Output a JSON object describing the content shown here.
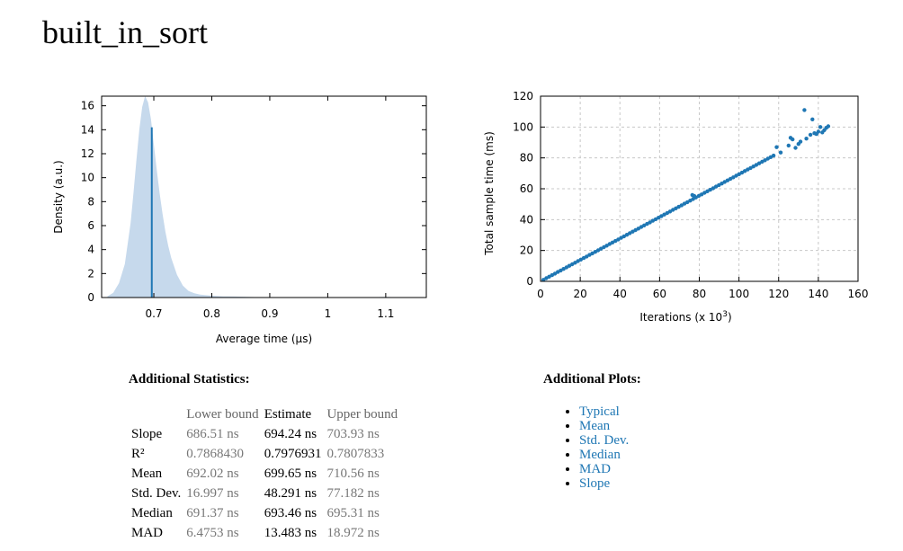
{
  "page": {
    "title": "built_in_sort"
  },
  "chart_data": [
    {
      "type": "area",
      "xlabel": "Average time (µs)",
      "ylabel": "Density (a.u.)",
      "xlim": [
        0.61,
        1.17
      ],
      "ylim": [
        0,
        16.8
      ],
      "xticks": [
        0.7,
        0.8,
        0.9,
        1,
        1.1
      ],
      "yticks": [
        0,
        2,
        4,
        6,
        8,
        10,
        12,
        14,
        16
      ],
      "grid": false,
      "x": [
        0.62,
        0.63,
        0.64,
        0.65,
        0.66,
        0.665,
        0.67,
        0.675,
        0.68,
        0.685,
        0.69,
        0.695,
        0.7,
        0.705,
        0.71,
        0.715,
        0.72,
        0.725,
        0.73,
        0.74,
        0.75,
        0.76,
        0.77,
        0.78,
        0.8,
        0.82,
        0.84,
        0.86,
        0.88,
        0.9,
        0.95,
        1.0,
        1.05,
        1.08,
        1.1,
        1.12,
        1.15
      ],
      "y": [
        0.1,
        0.4,
        1.2,
        2.8,
        6.2,
        8.8,
        11.5,
        14.0,
        15.9,
        16.8,
        16.3,
        14.9,
        12.8,
        10.7,
        8.7,
        7.0,
        5.5,
        4.3,
        3.3,
        1.9,
        1.0,
        0.55,
        0.35,
        0.25,
        0.15,
        0.1,
        0.08,
        0.05,
        0.03,
        0.02,
        0.01,
        0.01,
        0.01,
        0.03,
        0.06,
        0.02,
        0.0
      ],
      "estimate_line": {
        "x": 0.6965,
        "y": 14.2
      },
      "colors": {
        "fill": "#c6d9ec",
        "line": "#1f77b4"
      }
    },
    {
      "type": "scatter",
      "xlabel": "Iterations (x 10",
      "xlabel_sup": "3",
      "xlabel_end": ")",
      "ylabel": "Total sample time (ms)",
      "xlim": [
        0,
        160
      ],
      "ylim": [
        0,
        120
      ],
      "xticks": [
        0,
        20,
        40,
        60,
        80,
        100,
        120,
        140,
        160
      ],
      "yticks": [
        0,
        20,
        40,
        60,
        80,
        100,
        120
      ],
      "grid": true,
      "slope_per_1e3_iter": 0.694,
      "max_x": 145,
      "outliers": [
        {
          "x": 76.5,
          "y": 56.0
        },
        {
          "x": 77.5,
          "y": 55.3
        },
        {
          "x": 119,
          "y": 87.0
        },
        {
          "x": 121,
          "y": 83.5
        },
        {
          "x": 125,
          "y": 88.0
        },
        {
          "x": 126,
          "y": 93.0
        },
        {
          "x": 127,
          "y": 92.0
        },
        {
          "x": 128.5,
          "y": 86.5
        },
        {
          "x": 130,
          "y": 89.0
        },
        {
          "x": 131,
          "y": 90.5
        },
        {
          "x": 133,
          "y": 111.0
        },
        {
          "x": 134,
          "y": 92.5
        },
        {
          "x": 136,
          "y": 95.0
        },
        {
          "x": 137,
          "y": 105.0
        },
        {
          "x": 138,
          "y": 96.0
        },
        {
          "x": 139,
          "y": 95.5
        },
        {
          "x": 140,
          "y": 97.0
        },
        {
          "x": 141,
          "y": 100.0
        },
        {
          "x": 142,
          "y": 96.5
        },
        {
          "x": 143,
          "y": 98.0
        },
        {
          "x": 144,
          "y": 99.5
        },
        {
          "x": 145,
          "y": 100.5
        }
      ],
      "colors": {
        "point": "#1f77b4"
      }
    }
  ],
  "stats": {
    "title": "Additional Statistics:",
    "headers": {
      "lower": "Lower bound",
      "estimate": "Estimate",
      "upper": "Upper bound"
    },
    "rows": [
      {
        "label": "Slope",
        "lower": "686.51 ns",
        "estimate": "694.24 ns",
        "upper": "703.93 ns"
      },
      {
        "label": "R²",
        "lower": "0.7868430",
        "estimate": "0.7976931",
        "upper": "0.7807833"
      },
      {
        "label": "Mean",
        "lower": "692.02 ns",
        "estimate": "699.65 ns",
        "upper": "710.56 ns"
      },
      {
        "label": "Std. Dev.",
        "lower": "16.997 ns",
        "estimate": "48.291 ns",
        "upper": "77.182 ns"
      },
      {
        "label": "Median",
        "lower": "691.37 ns",
        "estimate": "693.46 ns",
        "upper": "695.31 ns"
      },
      {
        "label": "MAD",
        "lower": "6.4753 ns",
        "estimate": "13.483 ns",
        "upper": "18.972 ns"
      }
    ]
  },
  "plots": {
    "title": "Additional Plots:",
    "links": [
      "Typical",
      "Mean",
      "Std. Dev.",
      "Median",
      "MAD",
      "Slope"
    ]
  }
}
